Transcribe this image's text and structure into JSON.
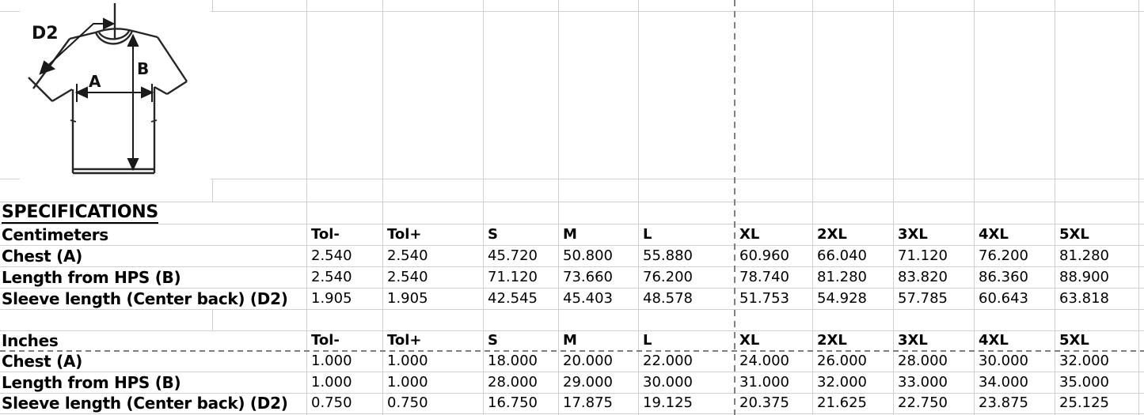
{
  "sheet": {
    "title": "SPECIFICATIONS",
    "tables": [
      {
        "unit": "Centimeters",
        "columns": [
          "Tol-",
          "Tol+",
          "S",
          "M",
          "L",
          "XL",
          "2XL",
          "3XL",
          "4XL",
          "5XL"
        ],
        "rows": [
          {
            "label": "Chest (A)",
            "values": [
              "2.540",
              "2.540",
              "45.720",
              "50.800",
              "55.880",
              "60.960",
              "66.040",
              "71.120",
              "76.200",
              "81.280"
            ]
          },
          {
            "label": "Length from HPS (B)",
            "values": [
              "2.540",
              "2.540",
              "71.120",
              "73.660",
              "76.200",
              "78.740",
              "81.280",
              "83.820",
              "86.360",
              "88.900"
            ]
          },
          {
            "label": "Sleeve length (Center back) (D2)",
            "values": [
              "1.905",
              "1.905",
              "42.545",
              "45.403",
              "48.578",
              "51.753",
              "54.928",
              "57.785",
              "60.643",
              "63.818"
            ]
          }
        ]
      },
      {
        "unit": "Inches",
        "columns": [
          "Tol-",
          "Tol+",
          "S",
          "M",
          "L",
          "XL",
          "2XL",
          "3XL",
          "4XL",
          "5XL"
        ],
        "rows": [
          {
            "label": "Chest (A)",
            "values": [
              "1.000",
              "1.000",
              "18.000",
              "20.000",
              "22.000",
              "24.000",
              "26.000",
              "28.000",
              "30.000",
              "32.000"
            ]
          },
          {
            "label": "Length from HPS (B)",
            "values": [
              "1.000",
              "1.000",
              "28.000",
              "29.000",
              "30.000",
              "31.000",
              "32.000",
              "33.000",
              "34.000",
              "35.000"
            ]
          },
          {
            "label": "Sleeve length (Center back) (D2)",
            "values": [
              "0.750",
              "0.750",
              "16.750",
              "17.875",
              "19.125",
              "20.375",
              "21.625",
              "22.750",
              "23.875",
              "25.125"
            ]
          }
        ]
      }
    ]
  },
  "diagram": {
    "label_a": "A",
    "label_b": "B",
    "label_d2": "D2"
  },
  "colors": {
    "gridline": "#d0d0d3",
    "page_break": "#7f7f7f",
    "text": "#000000",
    "background": "#ffffff"
  }
}
